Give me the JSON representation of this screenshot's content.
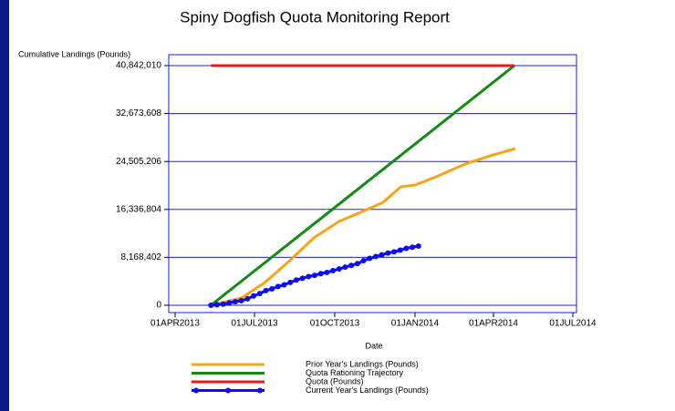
{
  "chart_data": {
    "type": "line",
    "title": "Spiny Dogfish Quota Monitoring Report",
    "y_label": "Cumulative Landings (Pounds)",
    "x_label": "Date",
    "xlim": [
      "2013-04-01",
      "2014-07-01"
    ],
    "xticks": [
      {
        "value": "2013-04-01",
        "label": "01APR2013"
      },
      {
        "value": "2013-07-01",
        "label": "01JUL2013"
      },
      {
        "value": "2013-10-01",
        "label": "01OCT2013"
      },
      {
        "value": "2014-01-01",
        "label": "01JAN2014"
      },
      {
        "value": "2014-04-01",
        "label": "01APR2014"
      },
      {
        "value": "2014-07-01",
        "label": "01JUL2014"
      }
    ],
    "ylim": [
      0,
      40842010
    ],
    "yticks": [
      0,
      {
        "value": 8168402,
        "label": "8,168,402"
      },
      {
        "value": 16336804,
        "label": "16,336,804"
      },
      {
        "value": 24505206,
        "label": "24,505,206"
      },
      {
        "value": 32673608,
        "label": "32,673,608"
      },
      {
        "value": 40842010,
        "label": "40,842,010"
      }
    ],
    "grid": true,
    "series": [
      {
        "name": "Prior Year's Landings (Pounds)",
        "color": "#f5a418",
        "x": [
          "2013-05-12",
          "2013-06-16",
          "2013-07-13",
          "2013-08-08",
          "2013-09-08",
          "2013-10-06",
          "2013-10-30",
          "2013-11-25",
          "2013-12-16",
          "2014-01-01",
          "2014-01-27",
          "2014-02-28",
          "2014-03-31",
          "2014-04-26"
        ],
        "values": [
          0,
          1240000,
          3900000,
          7300000,
          11600000,
          14300000,
          15800000,
          17500000,
          20200000,
          20500000,
          22000000,
          24100000,
          25600000,
          26700000
        ]
      },
      {
        "name": "Quota Rationing Trajectory",
        "color": "#138a13",
        "x": [
          "2013-05-12",
          "2014-04-25"
        ],
        "values": [
          0,
          40842010
        ]
      },
      {
        "name": "Quota (Pounds)",
        "color": "#e8191a",
        "x": [
          "2013-05-12",
          "2014-04-25"
        ],
        "values": [
          40842010,
          40842010
        ]
      },
      {
        "name": "Current Year's Landings (Pounds)",
        "color": "#0a0aff",
        "markers": true,
        "x": [
          "2013-05-12",
          "2013-05-19",
          "2013-05-26",
          "2013-06-02",
          "2013-06-09",
          "2013-06-16",
          "2013-06-23",
          "2013-06-30",
          "2013-07-07",
          "2013-07-14",
          "2013-07-21",
          "2013-07-28",
          "2013-08-04",
          "2013-08-11",
          "2013-08-18",
          "2013-08-25",
          "2013-09-01",
          "2013-09-08",
          "2013-09-15",
          "2013-09-22",
          "2013-09-29",
          "2013-10-06",
          "2013-10-13",
          "2013-10-20",
          "2013-10-27",
          "2013-11-03",
          "2013-11-10",
          "2013-11-17",
          "2013-11-24",
          "2013-12-01",
          "2013-12-08",
          "2013-12-15",
          "2013-12-22",
          "2013-12-29",
          "2014-01-05"
        ],
        "values": [
          0,
          100000,
          200000,
          400000,
          600000,
          800000,
          1100000,
          1600000,
          2000000,
          2500000,
          2800000,
          3200000,
          3500000,
          3900000,
          4300000,
          4600000,
          4900000,
          5100000,
          5400000,
          5600000,
          5900000,
          6200000,
          6500000,
          6800000,
          7100000,
          7600000,
          8000000,
          8300000,
          8600000,
          8900000,
          9100000,
          9400000,
          9700000,
          9900000,
          10100000
        ]
      }
    ]
  }
}
